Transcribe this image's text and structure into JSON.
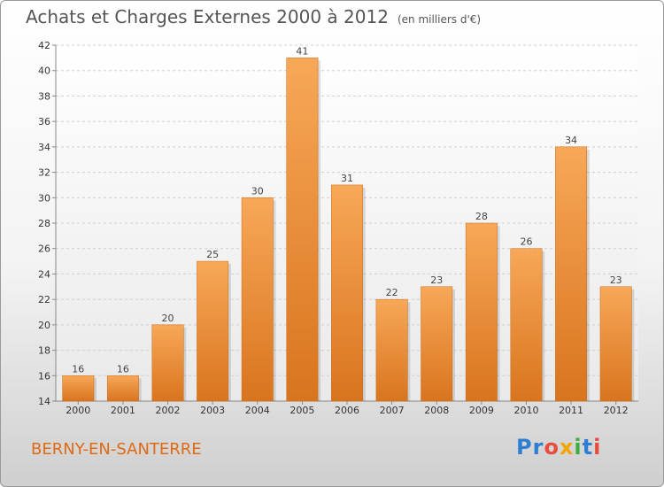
{
  "header": {
    "title": "Achats et Charges Externes 2000 à 2012",
    "subtitle": "(en milliers d'€)"
  },
  "footer": {
    "commune": "BERNY-EN-SANTERRE",
    "logo_text": "Proxiti"
  },
  "colors": {
    "bar_top": "#f7a858",
    "bar_bottom": "#d9741e",
    "commune_text": "#e06a12"
  },
  "chart_data": {
    "type": "bar",
    "title": "Achats et Charges Externes 2000 à 2012",
    "subtitle": "(en milliers d'€)",
    "xlabel": "",
    "ylabel": "",
    "categories": [
      "2000",
      "2001",
      "2002",
      "2003",
      "2004",
      "2005",
      "2006",
      "2007",
      "2008",
      "2009",
      "2010",
      "2011",
      "2012"
    ],
    "values": [
      16,
      16,
      20,
      25,
      30,
      41,
      31,
      22,
      23,
      28,
      26,
      34,
      23
    ],
    "ylim": [
      14,
      42
    ],
    "yticks": [
      14,
      16,
      18,
      20,
      22,
      24,
      26,
      28,
      30,
      32,
      34,
      36,
      38,
      40,
      42
    ],
    "grid": true,
    "data_labels": true
  }
}
